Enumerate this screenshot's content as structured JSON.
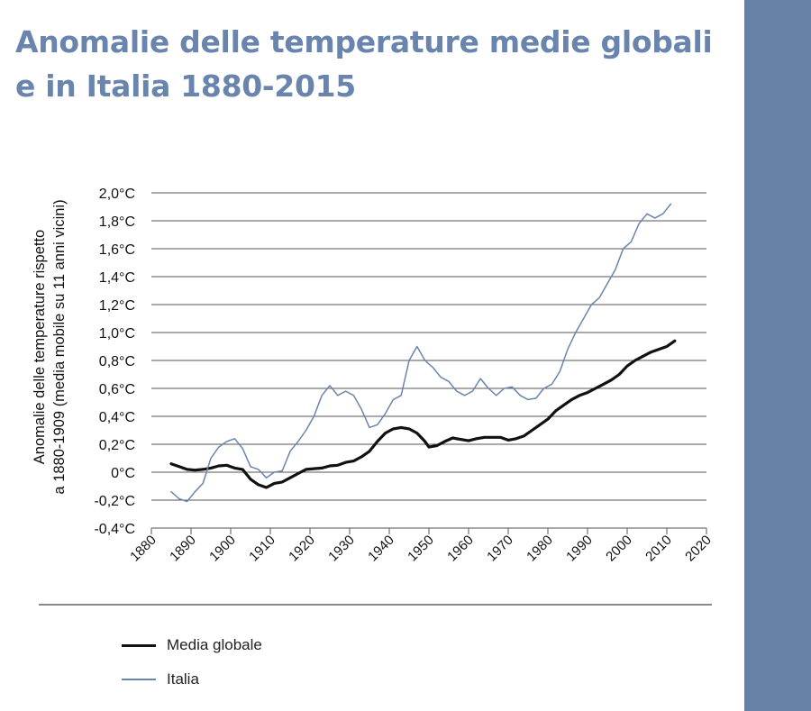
{
  "colors": {
    "title": "#6a85ad",
    "side_band": "#6780a6",
    "global_line": "#111111",
    "italia_line": "#6a85ad",
    "grid": "#555555"
  },
  "header": {
    "title_line1": "Anomalie delle temperature medie globali",
    "title_line2": "e in Italia 1880-2015"
  },
  "chart_data": {
    "type": "line",
    "title": "Anomalie delle temperature medie globali e in Italia 1880-2015",
    "ylabel_line1": "Anomalie delle temperature rispetto",
    "ylabel_line2": "a 1880-1909 (media mobile su 11 anni vicini)",
    "xlabel": "",
    "xlim": [
      1880,
      2020
    ],
    "ylim": [
      -0.4,
      2.0
    ],
    "x_ticks": [
      1880,
      1890,
      1900,
      1910,
      1920,
      1930,
      1940,
      1950,
      1960,
      1970,
      1980,
      1990,
      2000,
      2010,
      2020
    ],
    "y_ticks": [
      -0.4,
      -0.2,
      0,
      0.2,
      0.4,
      0.6,
      0.8,
      1.0,
      1.2,
      1.4,
      1.6,
      1.8,
      2.0
    ],
    "y_tick_labels": [
      "-0,4°C",
      "-0,2°C",
      "0°C",
      "0,2°C",
      "0,4°C",
      "0,6°C",
      "0,8°C",
      "1,0°C",
      "1,2°C",
      "1,4°C",
      "1,6°C",
      "1,8°C",
      "2,0°C"
    ],
    "grid": true,
    "legend_position": "bottom",
    "series": [
      {
        "name": "Media globale",
        "x": [
          1885,
          1887,
          1889,
          1891,
          1893,
          1895,
          1897,
          1899,
          1901,
          1903,
          1905,
          1907,
          1909,
          1911,
          1913,
          1915,
          1917,
          1919,
          1921,
          1923,
          1925,
          1927,
          1929,
          1931,
          1933,
          1935,
          1937,
          1939,
          1941,
          1943,
          1945,
          1947,
          1949,
          1950,
          1952,
          1954,
          1956,
          1958,
          1960,
          1962,
          1964,
          1966,
          1968,
          1970,
          1972,
          1974,
          1976,
          1978,
          1980,
          1982,
          1984,
          1986,
          1988,
          1990,
          1992,
          1994,
          1996,
          1998,
          2000,
          2002,
          2004,
          2006,
          2008,
          2010,
          2012
        ],
        "values": [
          0.06,
          0.04,
          0.02,
          0.015,
          0.02,
          0.03,
          0.045,
          0.05,
          0.03,
          0.02,
          -0.05,
          -0.09,
          -0.11,
          -0.08,
          -0.07,
          -0.04,
          -0.01,
          0.02,
          0.025,
          0.03,
          0.045,
          0.05,
          0.07,
          0.08,
          0.11,
          0.15,
          0.22,
          0.28,
          0.31,
          0.32,
          0.31,
          0.28,
          0.22,
          0.18,
          0.19,
          0.22,
          0.245,
          0.235,
          0.225,
          0.24,
          0.25,
          0.25,
          0.25,
          0.23,
          0.24,
          0.26,
          0.3,
          0.34,
          0.38,
          0.44,
          0.48,
          0.52,
          0.55,
          0.57,
          0.6,
          0.63,
          0.66,
          0.7,
          0.76,
          0.8,
          0.83,
          0.86,
          0.88,
          0.9,
          0.94
        ]
      },
      {
        "name": "Italia",
        "x": [
          1885,
          1887,
          1889,
          1891,
          1893,
          1895,
          1897,
          1899,
          1901,
          1903,
          1905,
          1907,
          1909,
          1911,
          1913,
          1915,
          1917,
          1919,
          1921,
          1923,
          1925,
          1927,
          1929,
          1931,
          1933,
          1935,
          1937,
          1939,
          1941,
          1943,
          1945,
          1947,
          1949,
          1951,
          1953,
          1955,
          1957,
          1959,
          1961,
          1963,
          1965,
          1967,
          1969,
          1971,
          1973,
          1975,
          1977,
          1979,
          1981,
          1983,
          1985,
          1987,
          1989,
          1991,
          1993,
          1995,
          1997,
          1999,
          2001,
          2003,
          2005,
          2007,
          2009,
          2011
        ],
        "values": [
          -0.14,
          -0.19,
          -0.21,
          -0.14,
          -0.08,
          0.1,
          0.18,
          0.22,
          0.24,
          0.17,
          0.04,
          0.02,
          -0.04,
          0.0,
          0.01,
          0.15,
          0.22,
          0.3,
          0.4,
          0.55,
          0.62,
          0.55,
          0.58,
          0.55,
          0.45,
          0.32,
          0.34,
          0.42,
          0.52,
          0.55,
          0.8,
          0.9,
          0.8,
          0.75,
          0.68,
          0.65,
          0.58,
          0.55,
          0.58,
          0.67,
          0.6,
          0.55,
          0.6,
          0.61,
          0.55,
          0.52,
          0.53,
          0.6,
          0.63,
          0.72,
          0.88,
          1.0,
          1.1,
          1.2,
          1.25,
          1.35,
          1.45,
          1.6,
          1.65,
          1.78,
          1.85,
          1.82,
          1.85,
          1.92
        ]
      }
    ]
  },
  "legend": {
    "global_label": "Media globale",
    "italia_label": "Italia"
  }
}
